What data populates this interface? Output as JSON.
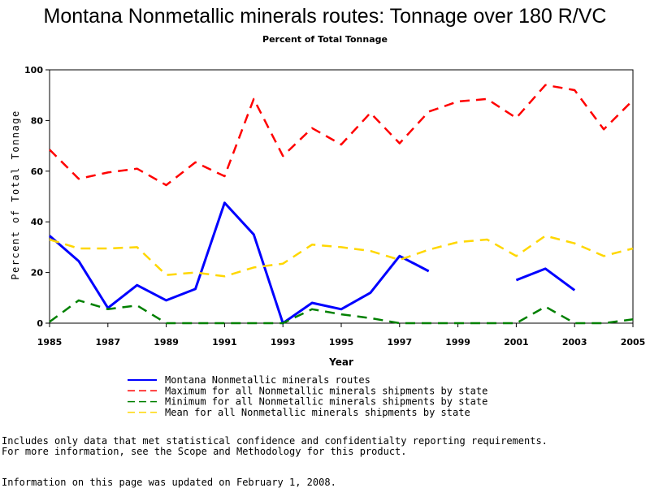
{
  "chart_data": {
    "type": "line",
    "title": "Montana Nonmetallic minerals routes: Tonnage over 180 R/VC",
    "subtitle": "Percent of Total Tonnage",
    "xlabel": "Year",
    "ylabel": "Percent of Total Tonnage",
    "xlim": [
      1985,
      2005
    ],
    "ylim": [
      0,
      100
    ],
    "x_ticks": [
      "1985",
      "1987",
      "1989",
      "1991",
      "1993",
      "1995",
      "1997",
      "1999",
      "2001",
      "2003",
      "2005"
    ],
    "y_ticks": [
      "0",
      "20",
      "40",
      "60",
      "80",
      "100"
    ],
    "x": [
      1985,
      1986,
      1987,
      1988,
      1989,
      1990,
      1991,
      1992,
      1993,
      1994,
      1995,
      1996,
      1997,
      1998,
      1999,
      2000,
      2001,
      2002,
      2003,
      2004,
      2005
    ],
    "series": [
      {
        "name": "Montana Nonmetallic minerals routes",
        "color": "#0000ff",
        "style": "solid",
        "values": [
          34.5,
          24.5,
          6,
          15,
          9,
          13.5,
          47.5,
          35,
          0,
          8,
          5.5,
          12,
          26.5,
          20.5,
          null,
          null,
          17,
          21.5,
          13,
          null,
          null
        ]
      },
      {
        "name": "Maximum for all Nonmetallic minerals shipments by state",
        "color": "#ff0000",
        "style": "dashed",
        "values": [
          68.5,
          57,
          59.5,
          61,
          54.5,
          63.5,
          58,
          88.5,
          66,
          77,
          70.5,
          83,
          71,
          83.5,
          87.5,
          88.5,
          81,
          94,
          92,
          76.5,
          88
        ]
      },
      {
        "name": "Minimum for all Nonmetallic minerals shipments by state",
        "color": "#008000",
        "style": "dashed",
        "values": [
          0.5,
          9,
          5.5,
          7,
          0,
          0,
          0,
          0,
          0,
          5.5,
          3.5,
          2,
          0,
          0,
          0,
          0,
          0,
          6.5,
          0,
          0,
          1.5
        ]
      },
      {
        "name": "Mean for all Nonmetallic minerals shipments by state",
        "color": "#ffd700",
        "style": "dashed",
        "values": [
          33,
          29.5,
          29.5,
          30,
          19,
          20,
          18.5,
          22,
          23.5,
          31,
          30,
          28.5,
          25,
          29,
          32,
          33,
          26.5,
          34.5,
          31.5,
          26.5,
          29.5
        ]
      }
    ]
  },
  "notes": {
    "line1": "Includes only data that met statistical confidence and confidentialty reporting requirements.",
    "line2": "For more information, see the Scope and Methodology for this product.",
    "updated": "Information on this page was updated on February 1, 2008."
  }
}
